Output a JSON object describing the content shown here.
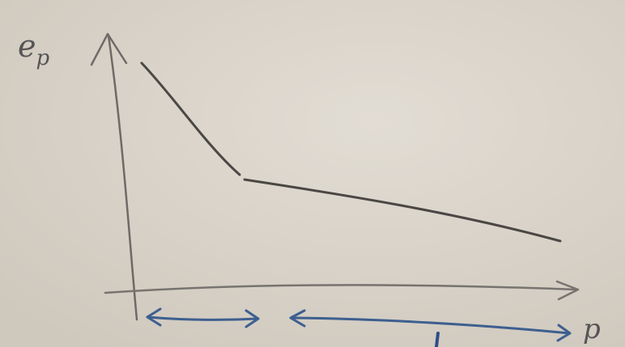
{
  "y_axis": {
    "label": "e",
    "subscript": "p"
  },
  "x_axis": {
    "label": "p"
  }
}
